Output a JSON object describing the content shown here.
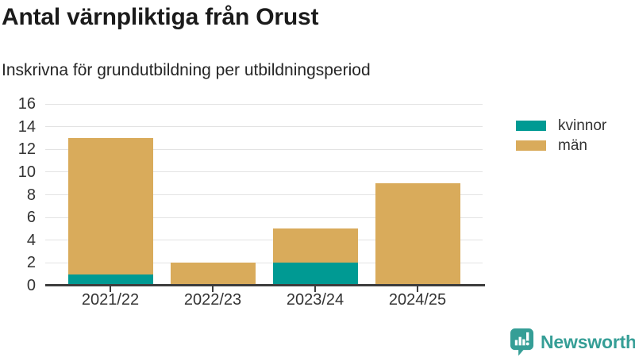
{
  "header": {
    "title": "Antal värnpliktiga från Orust",
    "subtitle": "Inskrivna för grundutbildning per utbildningsperiod"
  },
  "chart_data": {
    "type": "bar",
    "stacked": true,
    "categories": [
      "2021/22",
      "2022/23",
      "2023/24",
      "2024/25"
    ],
    "series": [
      {
        "name": "kvinnor",
        "color": "#009a93",
        "values": [
          1,
          0,
          2,
          0
        ]
      },
      {
        "name": "män",
        "color": "#d9ab5b",
        "values": [
          12,
          2,
          3,
          9
        ]
      }
    ],
    "totals": [
      13,
      2,
      5,
      9
    ],
    "title": "Antal värnpliktiga från Orust",
    "subtitle": "Inskrivna för grundutbildning per utbildningsperiod",
    "xlabel": "",
    "ylabel": "",
    "ylim": [
      0,
      16
    ],
    "ytick_step": 2,
    "grid": "horizontal",
    "legend_position": "right"
  },
  "colors": {
    "kvinnor": "#009a93",
    "man": "#d9ab5b",
    "axis": "#3d3d3d",
    "gridline": "#e3e3e3",
    "brand_teal": "#359e96"
  },
  "footer": {
    "brand": "Newsworthy",
    "logo_icon": "bar-chart-speech-bubble-icon"
  }
}
